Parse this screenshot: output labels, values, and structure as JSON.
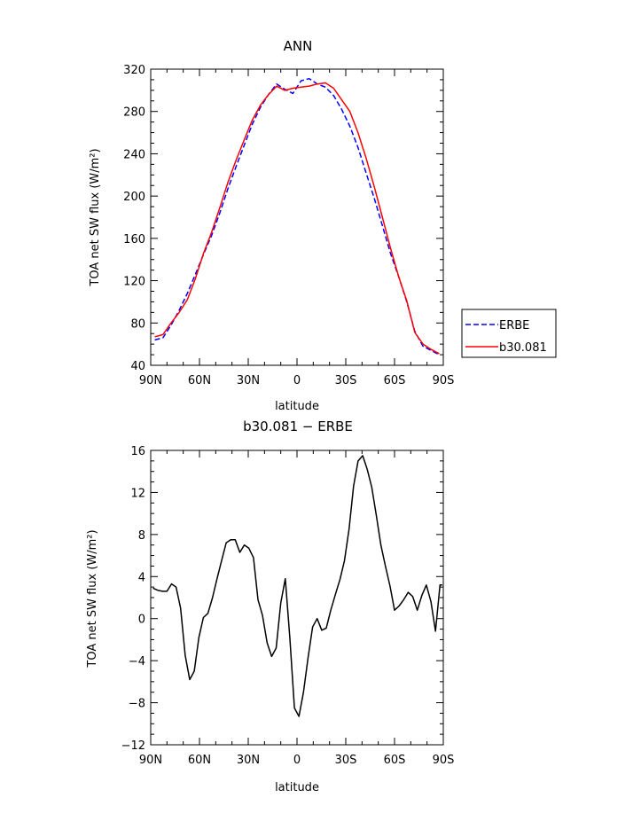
{
  "chart_data": [
    {
      "type": "line",
      "title": "ANN",
      "xlabel": "latitude",
      "ylabel": "TOA net SW flux (W/m²)",
      "xlim": [
        90,
        -90
      ],
      "ylim": [
        40,
        320
      ],
      "x_ticks": [
        90,
        60,
        30,
        0,
        -30,
        -60,
        -90
      ],
      "x_tick_labels": [
        "90N",
        "60N",
        "30N",
        "0",
        "30S",
        "60S",
        "90S"
      ],
      "y_ticks": [
        40,
        80,
        120,
        160,
        200,
        240,
        280,
        320
      ],
      "y_tick_labels": [
        "40",
        "80",
        "120",
        "160",
        "200",
        "240",
        "280",
        "320"
      ],
      "legend_position": "right",
      "series": [
        {
          "name": "ERBE",
          "color": "#0000ff",
          "dash": "dashed",
          "x": [
            87.5,
            82.5,
            77.5,
            72.5,
            67.5,
            62.5,
            57.5,
            52.5,
            47.5,
            42.5,
            37.5,
            32.5,
            27.5,
            22.5,
            17.5,
            12.5,
            7.5,
            2.5,
            -2.5,
            -7.5,
            -12.5,
            -17.5,
            -22.5,
            -27.5,
            -32.5,
            -37.5,
            -42.5,
            -47.5,
            -52.5,
            -57.5,
            -62.5,
            -67.5,
            -72.5,
            -77.5,
            -82.5,
            -87.5
          ],
          "values": [
            64,
            66,
            78,
            92,
            108,
            126,
            145,
            163,
            184,
            207,
            228,
            248,
            268,
            284,
            296,
            306,
            301,
            297,
            309,
            311,
            306,
            303,
            295,
            282,
            266,
            246,
            222,
            198,
            172,
            146,
            124,
            100,
            72,
            58,
            54,
            50
          ]
        },
        {
          "name": "b30.081",
          "color": "#ff0000",
          "dash": "solid",
          "x": [
            87.5,
            82.5,
            77.5,
            72.5,
            67.5,
            62.5,
            57.5,
            52.5,
            47.5,
            42.5,
            37.5,
            32.5,
            27.5,
            22.5,
            17.5,
            12.5,
            7.5,
            2.5,
            -2.5,
            -7.5,
            -12.5,
            -17.5,
            -22.5,
            -27.5,
            -32.5,
            -37.5,
            -42.5,
            -47.5,
            -52.5,
            -57.5,
            -62.5,
            -67.5,
            -72.5,
            -77.5,
            -82.5,
            -87.5
          ],
          "values": [
            67,
            69,
            80,
            90,
            102,
            122,
            146,
            166,
            189,
            213,
            234,
            253,
            272,
            286,
            296,
            304,
            300,
            302,
            303,
            304,
            306,
            307,
            302,
            291,
            280,
            260,
            236,
            209,
            180,
            151,
            124,
            101,
            71,
            60,
            55,
            51
          ]
        }
      ]
    },
    {
      "type": "line",
      "title": "b30.081 − ERBE",
      "xlabel": "latitude",
      "ylabel": "TOA net SW flux (W/m²)",
      "xlim": [
        90,
        -90
      ],
      "ylim": [
        -12,
        16
      ],
      "x_ticks": [
        90,
        60,
        30,
        0,
        -30,
        -60,
        -90
      ],
      "x_tick_labels": [
        "90N",
        "60N",
        "30N",
        "0",
        "30S",
        "60S",
        "90S"
      ],
      "y_ticks": [
        -12,
        -8,
        -4,
        0,
        4,
        8,
        12,
        16
      ],
      "y_tick_labels": [
        "−12",
        "−8",
        "−4",
        "0",
        "4",
        "8",
        "12",
        "16"
      ],
      "series": [
        {
          "color": "#000000",
          "dash": "solid",
          "x": [
            88.6,
            85.8,
            82.8,
            80,
            77.2,
            74.4,
            71.6,
            68.8,
            66.0,
            63.2,
            60.4,
            57.6,
            54.8,
            52,
            49.2,
            46.4,
            43.6,
            40.8,
            38,
            35.2,
            32.4,
            29.6,
            26.8,
            24,
            21.2,
            18.4,
            15.6,
            12.8,
            10,
            7.2,
            4.4,
            1.6,
            -1.2,
            -4,
            -6.8,
            -9.6,
            -12.4,
            -15.2,
            -18,
            -20.8,
            -23.6,
            -26.4,
            -29.2,
            -32,
            -34.8,
            -37.6,
            -40.4,
            -43.2,
            -46,
            -48.8,
            -51.6,
            -54.4,
            -57.2,
            -60,
            -62.8,
            -65.6,
            -68.4,
            -71.2,
            -74,
            -76.8,
            -79.6,
            -82.4,
            -85.2,
            -88.0,
            -89.4
          ],
          "values": [
            2.9,
            2.7,
            2.6,
            2.6,
            3.3,
            3.0,
            1.0,
            -3.5,
            -5.8,
            -5.0,
            -1.8,
            0.1,
            0.5,
            2.0,
            3.8,
            5.5,
            7.2,
            7.5,
            7.5,
            6.3,
            7.0,
            6.7,
            5.8,
            1.8,
            0.3,
            -2.3,
            -3.6,
            -2.8,
            1.5,
            3.8,
            -1.8,
            -8.5,
            -9.3,
            -7.0,
            -3.7,
            -0.8,
            0.0,
            -1.1,
            -0.9,
            0.8,
            2.3,
            3.7,
            5.5,
            8.5,
            12.6,
            15.0,
            15.5,
            14.2,
            12.5,
            9.8,
            7.0,
            5.0,
            3.1,
            0.8,
            1.2,
            1.8,
            2.5,
            2.1,
            0.8,
            2.2,
            3.2,
            1.6,
            -1.2,
            3.2,
            3.2
          ]
        }
      ]
    }
  ]
}
